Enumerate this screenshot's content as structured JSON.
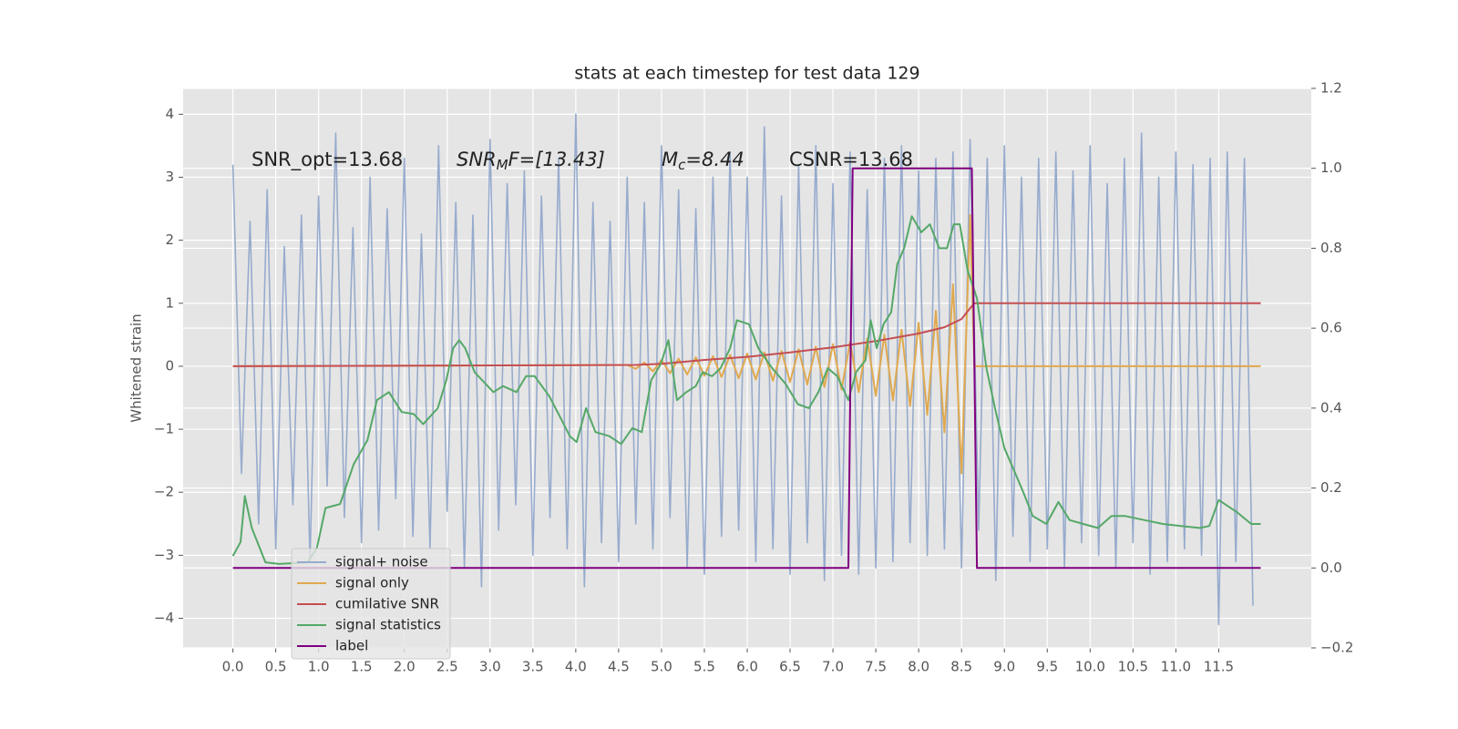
{
  "chart_data": {
    "type": "line",
    "title": "stats at each timestep for test data 129",
    "ylabel": "Whitened strain",
    "annotations": [
      {
        "text": "SNR_opt=13.68"
      },
      {
        "text": "SNR",
        "sub": "M",
        "after": "F=[13.43]"
      },
      {
        "text": "M",
        "sub": "c",
        "after": "=8.44"
      },
      {
        "text": "CSNR=13.68"
      }
    ],
    "xlim": [
      -0.58,
      12.58
    ],
    "xticks": [
      {
        "value": 0,
        "label": "0.0"
      },
      0.5,
      {
        "value": 1,
        "label": "1.0"
      },
      1.5,
      {
        "value": 2,
        "label": "2.0"
      },
      2.5,
      {
        "value": 3,
        "label": "3.0"
      },
      3.5,
      {
        "value": 4,
        "label": "4.0"
      },
      4.5,
      {
        "value": 5,
        "label": "5.0"
      },
      5.5,
      {
        "value": 6,
        "label": "6.0"
      },
      6.5,
      {
        "value": 7,
        "label": "7.0"
      },
      7.5,
      {
        "value": 8,
        "label": "8.0"
      },
      8.5,
      {
        "value": 9,
        "label": "9.0"
      },
      9.5,
      {
        "value": 10,
        "label": "10.0"
      },
      10.5,
      {
        "value": 11,
        "label": "11.0"
      },
      11.5
    ],
    "ylim": [
      -4.47,
      4.41
    ],
    "yticks": [
      {
        "value": -4,
        "label": "−4"
      },
      {
        "value": -3,
        "label": "−3"
      },
      {
        "value": -2,
        "label": "−2"
      },
      {
        "value": -1,
        "label": "−1"
      },
      0,
      1,
      2,
      3,
      4
    ],
    "y2lim": [
      -0.2,
      1.2
    ],
    "y2ticks": [
      {
        "value": -0.2,
        "label": "−0.2"
      },
      {
        "value": 0,
        "label": "0.0"
      },
      0.2,
      0.4,
      0.6,
      0.8,
      {
        "value": 1,
        "label": "1.0"
      },
      1.2
    ],
    "grid": true,
    "legend": "lower left",
    "series": [
      {
        "name": "signal+ noise",
        "color": "#97abcd",
        "x": [
          0,
          0.1,
          0.2,
          0.3,
          0.4,
          0.5,
          0.6,
          0.7,
          0.8,
          0.9,
          1,
          1.1,
          1.2,
          1.3,
          1.4,
          1.5,
          1.6,
          1.7,
          1.8,
          1.9,
          2,
          2.1,
          2.2,
          2.3,
          2.4,
          2.5,
          2.6,
          2.7,
          2.8,
          2.9,
          3,
          3.1,
          3.2,
          3.3,
          3.4,
          3.5,
          3.6,
          3.7,
          3.8,
          3.9,
          4,
          4.1,
          4.2,
          4.3,
          4.4,
          4.5,
          4.6,
          4.7,
          4.8,
          4.9,
          5,
          5.1,
          5.2,
          5.3,
          5.4,
          5.5,
          5.6,
          5.7,
          5.8,
          5.9,
          6,
          6.1,
          6.2,
          6.3,
          6.4,
          6.5,
          6.6,
          6.7,
          6.8,
          6.9,
          7,
          7.1,
          7.2,
          7.3,
          7.4,
          7.5,
          7.6,
          7.7,
          7.8,
          7.9,
          8,
          8.1,
          8.2,
          8.3,
          8.4,
          8.5,
          8.6,
          8.7,
          8.8,
          8.9,
          9,
          9.1,
          9.2,
          9.3,
          9.4,
          9.5,
          9.6,
          9.7,
          9.8,
          9.9,
          10,
          10.1,
          10.2,
          10.3,
          10.4,
          10.5,
          10.6,
          10.7,
          10.8,
          10.9,
          11,
          11.1,
          11.2,
          11.3,
          11.4,
          11.5,
          11.6,
          11.7,
          11.8,
          11.9
        ],
        "values": [
          3.2,
          -1.7,
          2.3,
          -2.5,
          2.8,
          -2.9,
          1.9,
          -2.2,
          2.4,
          -3.1,
          2.7,
          -1.9,
          3.7,
          -2.4,
          2.2,
          -2.8,
          3.0,
          -2.6,
          2.5,
          -2.1,
          3.3,
          -2.7,
          2.1,
          -2.9,
          3.5,
          -2.3,
          2.6,
          -3.2,
          2.4,
          -3.5,
          3.6,
          -2.6,
          2.9,
          -2.2,
          3.1,
          -3.0,
          2.7,
          -2.4,
          3.3,
          -2.9,
          4.0,
          -3.5,
          2.6,
          -2.8,
          2.3,
          -3.1,
          3.0,
          -2.5,
          2.6,
          -2.9,
          3.5,
          -2.4,
          2.8,
          -3.2,
          2.5,
          -3.3,
          3.0,
          -2.7,
          3.4,
          -2.6,
          3.0,
          -3.1,
          3.8,
          -2.9,
          2.7,
          -3.3,
          3.2,
          -2.8,
          3.5,
          -3.4,
          2.9,
          -3.0,
          3.4,
          -3.3,
          2.8,
          -3.2,
          3.3,
          -3.1,
          3.5,
          -2.8,
          3.1,
          -3.0,
          3.3,
          -2.9,
          3.4,
          -3.2,
          3.6,
          -2.6,
          3.3,
          -3.4,
          3.5,
          -2.7,
          3.0,
          -3.1,
          3.3,
          -2.9,
          3.4,
          -3.2,
          3.1,
          -2.8,
          3.5,
          -3.0,
          2.9,
          -3.2,
          3.3,
          -2.8,
          3.7,
          -3.3,
          3.0,
          -3.1,
          3.4,
          -2.9,
          3.2,
          -3.0,
          3.3,
          -4.1,
          3.4,
          -3.1,
          3.3,
          -3.8
        ]
      },
      {
        "name": "signal only",
        "color": "#e0a94f",
        "x": [
          0,
          4.6,
          4.7,
          4.8,
          4.9,
          5,
          5.1,
          5.2,
          5.3,
          5.4,
          5.5,
          5.6,
          5.7,
          5.8,
          5.9,
          6,
          6.1,
          6.2,
          6.3,
          6.4,
          6.5,
          6.6,
          6.7,
          6.8,
          6.9,
          7,
          7.1,
          7.2,
          7.3,
          7.4,
          7.5,
          7.6,
          7.7,
          7.8,
          7.9,
          8,
          8.1,
          8.2,
          8.3,
          8.4,
          8.5,
          8.6,
          8.65,
          11.99
        ],
        "values": [
          0,
          0.02,
          -0.04,
          0.06,
          -0.08,
          0.1,
          -0.11,
          0.12,
          -0.13,
          0.14,
          -0.15,
          0.16,
          -0.17,
          0.18,
          -0.19,
          0.2,
          -0.21,
          0.22,
          -0.23,
          0.24,
          -0.25,
          0.27,
          -0.29,
          0.31,
          -0.33,
          0.35,
          -0.37,
          0.39,
          -0.41,
          0.44,
          -0.47,
          0.5,
          -0.54,
          0.58,
          -0.63,
          0.69,
          -0.77,
          0.88,
          -1.05,
          1.3,
          -1.7,
          2.4,
          0,
          0
        ]
      },
      {
        "name": "cumilative SNR",
        "color": "#c44e52",
        "x": [
          0,
          4.7,
          5,
          5.5,
          6,
          6.5,
          7,
          7.5,
          8,
          8.3,
          8.5,
          8.6,
          8.65,
          11.99
        ],
        "values": [
          0,
          0.02,
          0.04,
          0.1,
          0.15,
          0.22,
          0.3,
          0.4,
          0.52,
          0.62,
          0.75,
          0.92,
          1.0,
          1.0
        ]
      },
      {
        "name": "signal statistics",
        "color": "#55a868",
        "axis": "y2",
        "x": [
          0,
          0.09,
          0.14,
          0.22,
          0.38,
          0.54,
          0.87,
          0.98,
          1.08,
          1.25,
          1.41,
          1.57,
          1.68,
          1.82,
          1.97,
          2.11,
          2.22,
          2.39,
          2.49,
          2.57,
          2.64,
          2.71,
          2.82,
          3.04,
          3.15,
          3.31,
          3.42,
          3.52,
          3.69,
          3.8,
          3.93,
          4.01,
          4.12,
          4.23,
          4.39,
          4.53,
          4.66,
          4.77,
          4.88,
          4.99,
          5.08,
          5.18,
          5.29,
          5.4,
          5.48,
          5.59,
          5.69,
          5.8,
          5.88,
          6.02,
          6.13,
          6.29,
          6.45,
          6.59,
          6.72,
          6.83,
          6.94,
          7.05,
          7.18,
          7.27,
          7.38,
          7.44,
          7.51,
          7.59,
          7.68,
          7.75,
          7.83,
          7.92,
          8.03,
          8.13,
          8.24,
          8.33,
          8.41,
          8.48,
          8.57,
          8.68,
          8.79,
          8.89,
          9,
          9.11,
          9.22,
          9.33,
          9.49,
          9.63,
          9.76,
          9.92,
          10.09,
          10.25,
          10.41,
          10.63,
          10.85,
          11.06,
          11.28,
          11.39,
          11.5,
          11.71,
          11.88,
          11.99
        ],
        "values": [
          0.03,
          0.065,
          0.18,
          0.1,
          0.014,
          0.01,
          0.014,
          0.05,
          0.15,
          0.16,
          0.26,
          0.32,
          0.42,
          0.44,
          0.39,
          0.385,
          0.36,
          0.4,
          0.47,
          0.55,
          0.57,
          0.55,
          0.49,
          0.44,
          0.455,
          0.44,
          0.48,
          0.48,
          0.43,
          0.385,
          0.33,
          0.315,
          0.4,
          0.34,
          0.33,
          0.31,
          0.35,
          0.34,
          0.47,
          0.51,
          0.57,
          0.42,
          0.44,
          0.455,
          0.49,
          0.48,
          0.5,
          0.55,
          0.62,
          0.61,
          0.55,
          0.5,
          0.46,
          0.41,
          0.4,
          0.44,
          0.5,
          0.48,
          0.42,
          0.49,
          0.52,
          0.62,
          0.55,
          0.61,
          0.64,
          0.76,
          0.8,
          0.88,
          0.84,
          0.86,
          0.8,
          0.8,
          0.86,
          0.86,
          0.745,
          0.675,
          0.5,
          0.4,
          0.3,
          0.245,
          0.19,
          0.13,
          0.11,
          0.165,
          0.12,
          0.11,
          0.1,
          0.13,
          0.13,
          0.12,
          0.11,
          0.105,
          0.1,
          0.105,
          0.17,
          0.14,
          0.11,
          0.11
        ]
      },
      {
        "name": "label",
        "color": "#800080",
        "axis": "y2",
        "x": [
          0,
          7.18,
          7.23,
          8.62,
          8.68,
          11.99
        ],
        "values": [
          0,
          0,
          1,
          1,
          0,
          0
        ]
      }
    ]
  }
}
